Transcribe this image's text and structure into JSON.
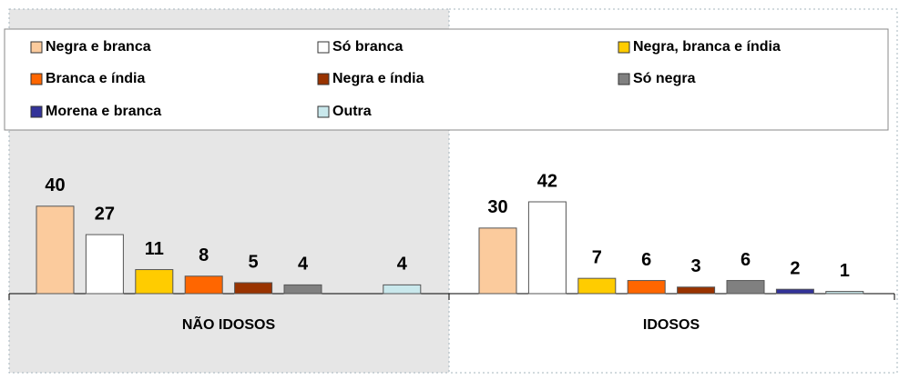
{
  "chart_data": {
    "type": "bar",
    "categories": [
      "NÃO IDOSOS",
      "IDOSOS"
    ],
    "series": [
      {
        "name": "Negra e branca",
        "color": "#fbcb9d",
        "values": [
          40,
          30
        ]
      },
      {
        "name": "Só branca",
        "color": "#ffffff",
        "values": [
          27,
          42
        ]
      },
      {
        "name": "Negra, branca e índia",
        "color": "#ffcc00",
        "values": [
          11,
          7
        ]
      },
      {
        "name": "Branca e índia",
        "color": "#ff6600",
        "values": [
          8,
          6
        ]
      },
      {
        "name": "Negra e índia",
        "color": "#993300",
        "values": [
          5,
          3
        ]
      },
      {
        "name": "Só negra",
        "color": "#808080",
        "values": [
          4,
          6
        ]
      },
      {
        "name": "Morena e branca",
        "color": "#333399",
        "values": [
          null,
          2
        ]
      },
      {
        "name": "Outra",
        "color": "#c9e8ec",
        "values": [
          4,
          1
        ]
      }
    ]
  }
}
